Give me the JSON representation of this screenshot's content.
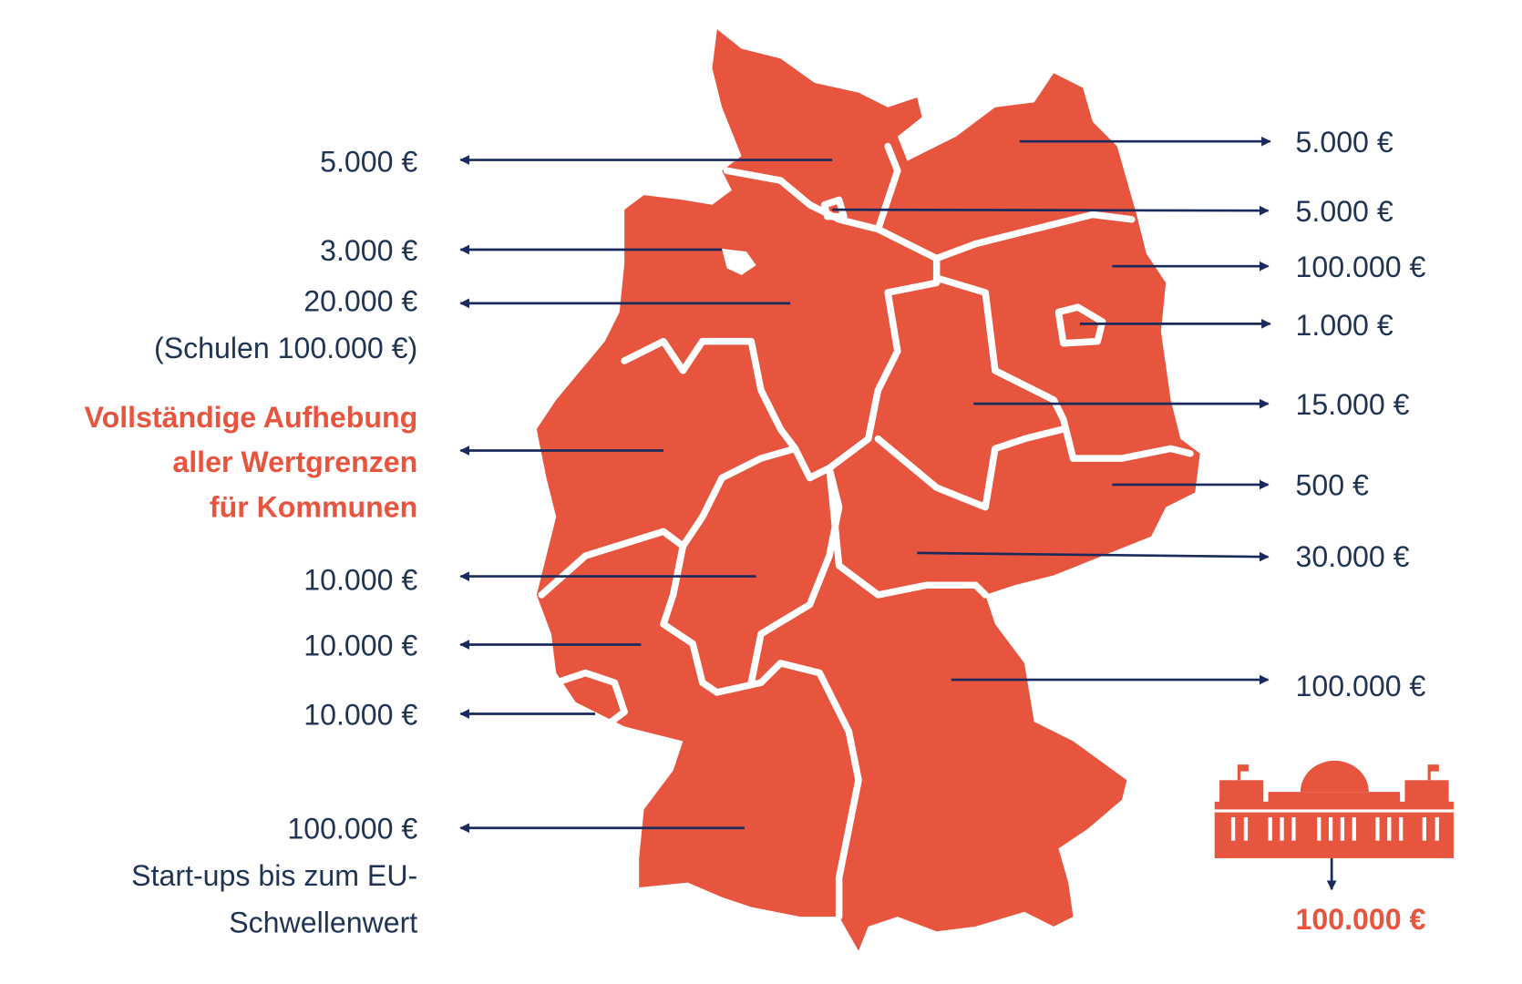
{
  "left_labels": [
    [
      "5.000 €"
    ],
    [
      "3.000 €"
    ],
    [
      "20.000 €",
      "(Schulen 100.000 €)"
    ],
    [
      "Vollständige Aufhebung",
      "aller Wertgrenzen",
      "für Kommunen"
    ],
    [
      "10.000 €"
    ],
    [
      "10.000 €"
    ],
    [
      "10.000 €"
    ],
    [
      "100.000 €",
      "Start-ups bis zum EU-",
      "Schwellenwert"
    ]
  ],
  "right_labels": [
    "5.000 €",
    "5.000 €",
    "100.000 €",
    "1.000 €",
    "15.000 €",
    "500 €",
    "30.000 €",
    "100.000 €"
  ],
  "federal_label": "100.000 €"
}
